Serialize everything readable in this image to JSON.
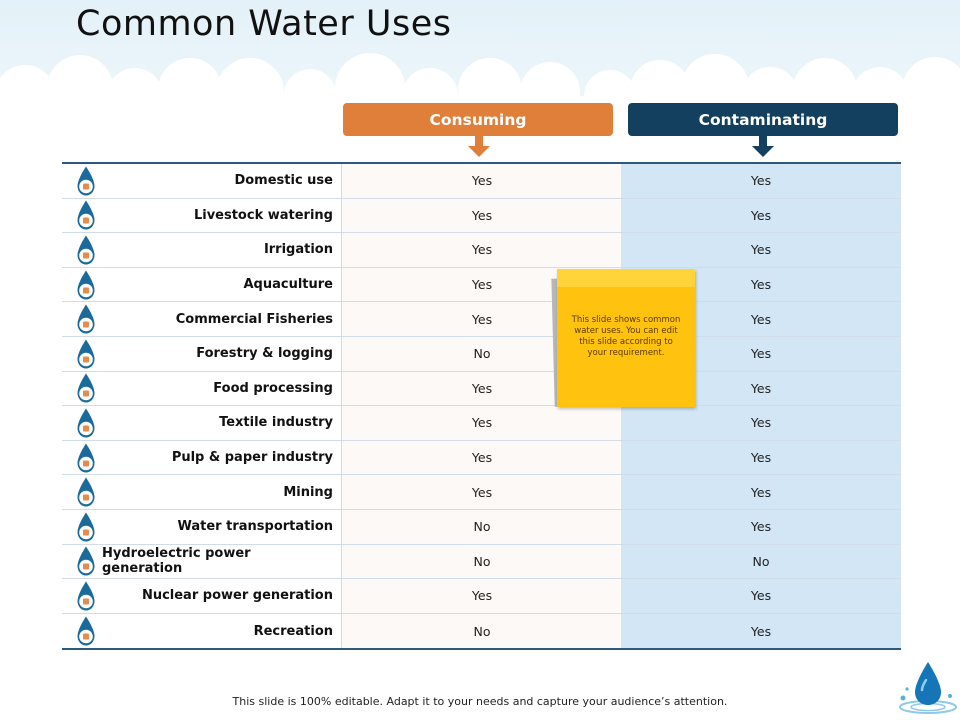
{
  "slide": {
    "title": "Common Water Uses",
    "footer": "This slide is 100% editable. Adapt it to your needs and capture your audience’s attention."
  },
  "headers": {
    "consuming": "Consuming",
    "contaminating": "Contaminating"
  },
  "colors": {
    "consuming_header": "#e07f3a",
    "contaminating_header": "#13405f",
    "contaminating_column": "#d3e6f5",
    "drop_icon": "#1a6a9c",
    "sticky_note": "#ffc20e"
  },
  "rows": [
    {
      "label": "Domestic use",
      "consuming": "Yes",
      "contaminating": "Yes",
      "icon": "house-icon"
    },
    {
      "label": "Livestock watering",
      "consuming": "Yes",
      "contaminating": "Yes",
      "icon": "cow-icon"
    },
    {
      "label": "Irrigation",
      "consuming": "Yes",
      "contaminating": "Yes",
      "icon": "sprinkler-icon"
    },
    {
      "label": "Aquaculture",
      "consuming": "Yes",
      "contaminating": "Yes",
      "icon": "fish-tank-icon"
    },
    {
      "label": "Commercial Fisheries",
      "consuming": "Yes",
      "contaminating": "Yes",
      "icon": "fish-icon"
    },
    {
      "label": "Forestry & logging",
      "consuming": "No",
      "contaminating": "Yes",
      "icon": "tree-icon"
    },
    {
      "label": "Food processing",
      "consuming": "Yes",
      "contaminating": "Yes",
      "icon": "bottle-icon"
    },
    {
      "label": "Textile industry",
      "consuming": "Yes",
      "contaminating": "Yes",
      "icon": "fabric-icon"
    },
    {
      "label": "Pulp & paper industry",
      "consuming": "Yes",
      "contaminating": "Yes",
      "icon": "paper-icon"
    },
    {
      "label": "Mining",
      "consuming": "Yes",
      "contaminating": "Yes",
      "icon": "mountain-icon"
    },
    {
      "label": "Water transportation",
      "consuming": "No",
      "contaminating": "Yes",
      "icon": "ship-icon"
    },
    {
      "label": "Hydroelectric power generation",
      "consuming": "No",
      "contaminating": "No",
      "icon": "dam-icon"
    },
    {
      "label": "Nuclear power generation",
      "consuming": "Yes",
      "contaminating": "Yes",
      "icon": "nuclear-plant-icon"
    },
    {
      "label": "Recreation",
      "consuming": "No",
      "contaminating": "Yes",
      "icon": "swimmer-icon"
    }
  ],
  "note": {
    "text": "This slide shows common water uses. You can edit this slide according to your requirement."
  }
}
